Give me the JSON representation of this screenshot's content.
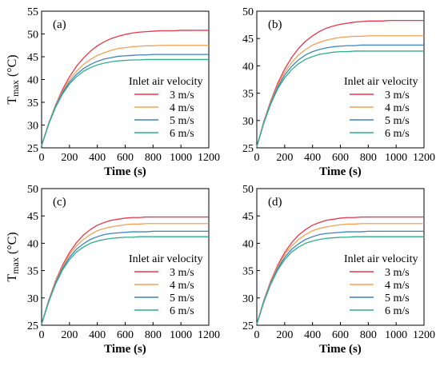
{
  "chart_data": [
    {
      "type": "line",
      "panel_label": "(a)",
      "xlabel": "Time (s)",
      "ylabel_main": "T",
      "ylabel_sub": "max",
      "ylabel_unit": " (°C)",
      "xlim": [
        0,
        1200
      ],
      "ylim": [
        25,
        55
      ],
      "xticks": [
        0,
        200,
        400,
        600,
        800,
        1000,
        1200
      ],
      "yticks": [
        25,
        30,
        35,
        40,
        45,
        50,
        55
      ],
      "legend_title": "Inlet air velocity",
      "legend_position": "center-right",
      "grid": false,
      "x": [
        0,
        50,
        100,
        150,
        200,
        250,
        300,
        350,
        400,
        450,
        500,
        550,
        600,
        650,
        700,
        750,
        800,
        850,
        900,
        950,
        1000,
        1050,
        1100,
        1150,
        1200
      ],
      "series": [
        {
          "name": "3 m/s",
          "values": [
            25.5,
            30.3,
            34.4,
            37.8,
            40.6,
            42.9,
            44.7,
            46.2,
            47.4,
            48.3,
            49.0,
            49.5,
            49.9,
            50.2,
            50.4,
            50.5,
            50.6,
            50.7,
            50.7,
            50.7,
            50.8,
            50.8,
            50.8,
            50.8,
            50.8
          ]
        },
        {
          "name": "4 m/s",
          "values": [
            25.5,
            30.3,
            34.3,
            37.4,
            39.9,
            41.8,
            43.3,
            44.4,
            45.3,
            45.9,
            46.4,
            46.8,
            47.0,
            47.2,
            47.3,
            47.4,
            47.4,
            47.5,
            47.5,
            47.5,
            47.5,
            47.5,
            47.5,
            47.5,
            47.5
          ]
        },
        {
          "name": "5 m/s",
          "values": [
            25.5,
            30.2,
            34.1,
            37.1,
            39.4,
            41.1,
            42.4,
            43.3,
            44.0,
            44.5,
            44.8,
            45.1,
            45.2,
            45.3,
            45.4,
            45.4,
            45.5,
            45.5,
            45.5,
            45.5,
            45.5,
            45.5,
            45.5,
            45.5,
            45.5
          ]
        },
        {
          "name": "6 m/s",
          "values": [
            25.5,
            30.1,
            33.9,
            36.8,
            39.0,
            40.6,
            41.8,
            42.6,
            43.2,
            43.6,
            43.9,
            44.1,
            44.2,
            44.3,
            44.3,
            44.4,
            44.4,
            44.4,
            44.4,
            44.4,
            44.4,
            44.4,
            44.4,
            44.4,
            44.4
          ]
        }
      ]
    },
    {
      "type": "line",
      "panel_label": "(b)",
      "xlabel": "Time (s)",
      "ylabel_main": "",
      "ylabel_sub": "",
      "ylabel_unit": "",
      "xlim": [
        0,
        1200
      ],
      "ylim": [
        25,
        50
      ],
      "xticks": [
        0,
        200,
        400,
        600,
        800,
        1000,
        1200
      ],
      "yticks": [
        25,
        30,
        35,
        40,
        45,
        50
      ],
      "legend_title": "Inlet air velocity",
      "legend_position": "center-right",
      "grid": false,
      "x": [
        0,
        50,
        100,
        150,
        200,
        250,
        300,
        350,
        400,
        450,
        500,
        550,
        600,
        650,
        700,
        750,
        800,
        850,
        900,
        950,
        1000,
        1050,
        1100,
        1150,
        1200
      ],
      "series": [
        {
          "name": "3 m/s",
          "values": [
            25.2,
            29.8,
            33.6,
            36.8,
            39.4,
            41.5,
            43.2,
            44.5,
            45.5,
            46.3,
            46.9,
            47.3,
            47.6,
            47.8,
            48.0,
            48.1,
            48.2,
            48.2,
            48.2,
            48.3,
            48.3,
            48.3,
            48.3,
            48.3,
            48.3
          ]
        },
        {
          "name": "4 m/s",
          "values": [
            25.2,
            29.7,
            33.4,
            36.4,
            38.8,
            40.6,
            42.0,
            43.0,
            43.8,
            44.3,
            44.7,
            45.0,
            45.2,
            45.3,
            45.4,
            45.4,
            45.5,
            45.5,
            45.5,
            45.5,
            45.5,
            45.5,
            45.5,
            45.5,
            45.5
          ]
        },
        {
          "name": "5 m/s",
          "values": [
            25.2,
            29.6,
            33.2,
            36.1,
            38.3,
            39.9,
            41.1,
            42.0,
            42.6,
            43.0,
            43.3,
            43.5,
            43.6,
            43.7,
            43.7,
            43.8,
            43.8,
            43.8,
            43.8,
            43.8,
            43.8,
            43.8,
            43.8,
            43.8,
            43.8
          ]
        },
        {
          "name": "6 m/s",
          "values": [
            25.2,
            29.5,
            33.0,
            35.8,
            37.8,
            39.3,
            40.4,
            41.2,
            41.7,
            42.1,
            42.3,
            42.5,
            42.6,
            42.6,
            42.7,
            42.7,
            42.7,
            42.7,
            42.7,
            42.7,
            42.7,
            42.7,
            42.7,
            42.7,
            42.7
          ]
        }
      ]
    },
    {
      "type": "line",
      "panel_label": "(c)",
      "xlabel": "Time (s)",
      "ylabel_main": "T",
      "ylabel_sub": "max",
      "ylabel_unit": " (°C)",
      "xlim": [
        0,
        1200
      ],
      "ylim": [
        25,
        50
      ],
      "xticks": [
        0,
        200,
        400,
        600,
        800,
        1000,
        1200
      ],
      "yticks": [
        25,
        30,
        35,
        40,
        45,
        50
      ],
      "legend_title": "Inlet air velocity",
      "legend_position": "center-right",
      "grid": false,
      "x": [
        0,
        50,
        100,
        150,
        200,
        250,
        300,
        350,
        400,
        450,
        500,
        550,
        600,
        650,
        700,
        750,
        800,
        850,
        900,
        950,
        1000,
        1050,
        1100,
        1150,
        1200
      ],
      "series": [
        {
          "name": "3 m/s",
          "values": [
            25.2,
            29.5,
            33.1,
            36.0,
            38.3,
            40.1,
            41.5,
            42.5,
            43.3,
            43.8,
            44.2,
            44.4,
            44.6,
            44.7,
            44.7,
            44.8,
            44.8,
            44.8,
            44.8,
            44.8,
            44.8,
            44.8,
            44.8,
            44.8,
            44.8
          ]
        },
        {
          "name": "4 m/s",
          "values": [
            25.2,
            29.4,
            32.9,
            35.7,
            37.9,
            39.5,
            40.7,
            41.6,
            42.3,
            42.7,
            43.0,
            43.2,
            43.4,
            43.5,
            43.5,
            43.6,
            43.6,
            43.6,
            43.6,
            43.6,
            43.6,
            43.6,
            43.6,
            43.6,
            43.6
          ]
        },
        {
          "name": "5 m/s",
          "values": [
            25.2,
            29.3,
            32.7,
            35.4,
            37.4,
            38.9,
            39.9,
            40.7,
            41.2,
            41.6,
            41.8,
            41.9,
            42.0,
            42.1,
            42.1,
            42.1,
            42.2,
            42.2,
            42.2,
            42.2,
            42.2,
            42.2,
            42.2,
            42.2,
            42.2
          ]
        },
        {
          "name": "6 m/s",
          "values": [
            25.2,
            29.2,
            32.5,
            35.1,
            37.0,
            38.4,
            39.3,
            40.0,
            40.4,
            40.7,
            40.9,
            41.0,
            41.1,
            41.1,
            41.2,
            41.2,
            41.2,
            41.2,
            41.2,
            41.2,
            41.2,
            41.2,
            41.2,
            41.2,
            41.2
          ]
        }
      ]
    },
    {
      "type": "line",
      "panel_label": "(d)",
      "xlabel": "Time (s)",
      "ylabel_main": "",
      "ylabel_sub": "",
      "ylabel_unit": "",
      "xlim": [
        0,
        1200
      ],
      "ylim": [
        25,
        50
      ],
      "xticks": [
        0,
        200,
        400,
        600,
        800,
        1000,
        1200
      ],
      "yticks": [
        25,
        30,
        35,
        40,
        45,
        50
      ],
      "legend_title": "Inlet air velocity",
      "legend_position": "center-right",
      "grid": false,
      "x": [
        0,
        50,
        100,
        150,
        200,
        250,
        300,
        350,
        400,
        450,
        500,
        550,
        600,
        650,
        700,
        750,
        800,
        850,
        900,
        950,
        1000,
        1050,
        1100,
        1150,
        1200
      ],
      "series": [
        {
          "name": "3 m/s",
          "values": [
            25.2,
            29.5,
            33.1,
            36.0,
            38.3,
            40.1,
            41.5,
            42.5,
            43.3,
            43.8,
            44.2,
            44.4,
            44.6,
            44.7,
            44.7,
            44.8,
            44.8,
            44.8,
            44.8,
            44.8,
            44.8,
            44.8,
            44.8,
            44.8,
            44.8
          ]
        },
        {
          "name": "4 m/s",
          "values": [
            25.2,
            29.4,
            32.9,
            35.7,
            37.9,
            39.5,
            40.7,
            41.6,
            42.3,
            42.7,
            43.0,
            43.2,
            43.4,
            43.5,
            43.5,
            43.6,
            43.6,
            43.6,
            43.6,
            43.6,
            43.6,
            43.6,
            43.6,
            43.6,
            43.6
          ]
        },
        {
          "name": "5 m/s",
          "values": [
            25.2,
            29.3,
            32.7,
            35.4,
            37.4,
            38.9,
            39.9,
            40.7,
            41.2,
            41.6,
            41.8,
            41.9,
            42.0,
            42.1,
            42.1,
            42.1,
            42.2,
            42.2,
            42.2,
            42.2,
            42.2,
            42.2,
            42.2,
            42.2,
            42.2
          ]
        },
        {
          "name": "6 m/s",
          "values": [
            25.2,
            29.2,
            32.5,
            35.1,
            37.0,
            38.4,
            39.3,
            40.0,
            40.4,
            40.7,
            40.9,
            41.0,
            41.1,
            41.1,
            41.2,
            41.2,
            41.2,
            41.2,
            41.2,
            41.2,
            41.2,
            41.2,
            41.2,
            41.2,
            41.2
          ]
        }
      ]
    }
  ],
  "series_colors": [
    "#e8364a",
    "#f5a053",
    "#3a84c4",
    "#2eae8a"
  ]
}
